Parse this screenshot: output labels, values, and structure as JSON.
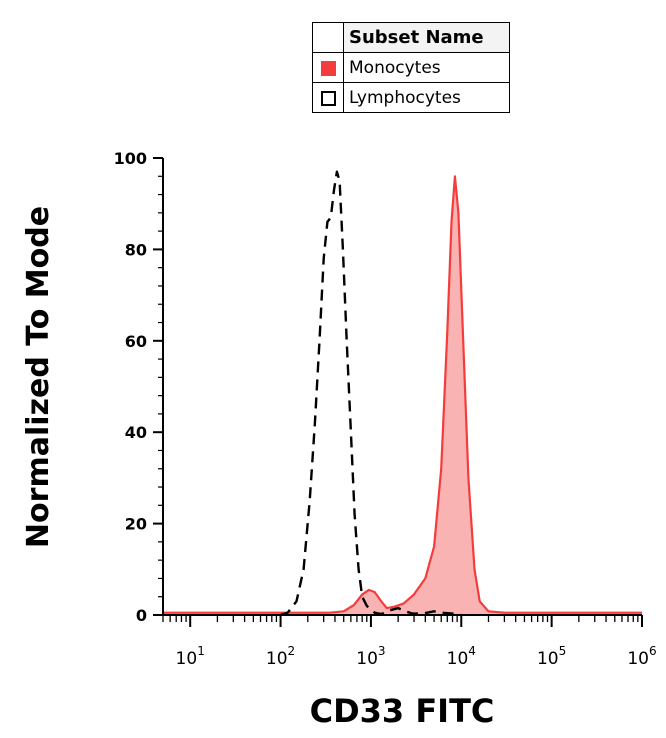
{
  "legend": {
    "header": "Subset Name",
    "items": [
      {
        "label": "Monocytes",
        "swatch": "filled",
        "color": "#f53c3c"
      },
      {
        "label": "Lymphocytes",
        "swatch": "outline",
        "color": "#000000"
      }
    ]
  },
  "chart_data": {
    "type": "area",
    "title": "",
    "xlabel": "CD33 FITC",
    "ylabel": "Normalized To Mode",
    "x_scale": "log",
    "xlim": [
      5,
      1000000
    ],
    "ylim": [
      0,
      100
    ],
    "yticks": [
      0,
      20,
      40,
      60,
      80,
      100
    ],
    "xtick_labels": [
      {
        "base": "10",
        "exp": "1"
      },
      {
        "base": "10",
        "exp": "2"
      },
      {
        "base": "10",
        "exp": "3"
      },
      {
        "base": "10",
        "exp": "4"
      },
      {
        "base": "10",
        "exp": "5"
      },
      {
        "base": "10",
        "exp": "6"
      }
    ],
    "legend_placement": "top-right",
    "grid": false,
    "series": [
      {
        "name": "Monocytes",
        "style": "filled",
        "stroke": "#f53c3c",
        "fill": "#f9b3b3",
        "points": [
          [
            5,
            0.5
          ],
          [
            100,
            0.5
          ],
          [
            350,
            0.5
          ],
          [
            500,
            0.8
          ],
          [
            650,
            2.2
          ],
          [
            800,
            4.5
          ],
          [
            950,
            5.5
          ],
          [
            1100,
            5
          ],
          [
            1300,
            3
          ],
          [
            1500,
            1.5
          ],
          [
            1800,
            1.8
          ],
          [
            2300,
            2.5
          ],
          [
            3000,
            4.5
          ],
          [
            4000,
            8
          ],
          [
            5000,
            15
          ],
          [
            6000,
            32
          ],
          [
            7000,
            62
          ],
          [
            7800,
            86
          ],
          [
            8500,
            96
          ],
          [
            9300,
            88
          ],
          [
            10500,
            60
          ],
          [
            12000,
            30
          ],
          [
            14000,
            10
          ],
          [
            16000,
            3
          ],
          [
            20000,
            0.8
          ],
          [
            30000,
            0.5
          ],
          [
            1000000,
            0.5
          ]
        ]
      },
      {
        "name": "Lymphocytes",
        "style": "dashed",
        "stroke": "#000000",
        "points": [
          [
            100,
            0
          ],
          [
            120,
            0.5
          ],
          [
            150,
            3
          ],
          [
            180,
            10
          ],
          [
            210,
            25
          ],
          [
            240,
            42
          ],
          [
            270,
            60
          ],
          [
            300,
            78
          ],
          [
            330,
            86
          ],
          [
            360,
            87
          ],
          [
            390,
            93
          ],
          [
            420,
            97
          ],
          [
            450,
            95
          ],
          [
            490,
            80
          ],
          [
            540,
            60
          ],
          [
            600,
            40
          ],
          [
            660,
            22
          ],
          [
            730,
            10
          ],
          [
            800,
            4
          ],
          [
            900,
            2
          ],
          [
            1100,
            0.5
          ],
          [
            1300,
            0.2
          ],
          [
            1600,
            1
          ],
          [
            2000,
            1.5
          ],
          [
            2400,
            0.8
          ],
          [
            2900,
            0.3
          ],
          [
            3500,
            0.3
          ],
          [
            4200,
            0.5
          ],
          [
            5000,
            0.8
          ],
          [
            6000,
            0.5
          ],
          [
            8000,
            0.3
          ],
          [
            10000,
            0
          ]
        ]
      }
    ]
  }
}
